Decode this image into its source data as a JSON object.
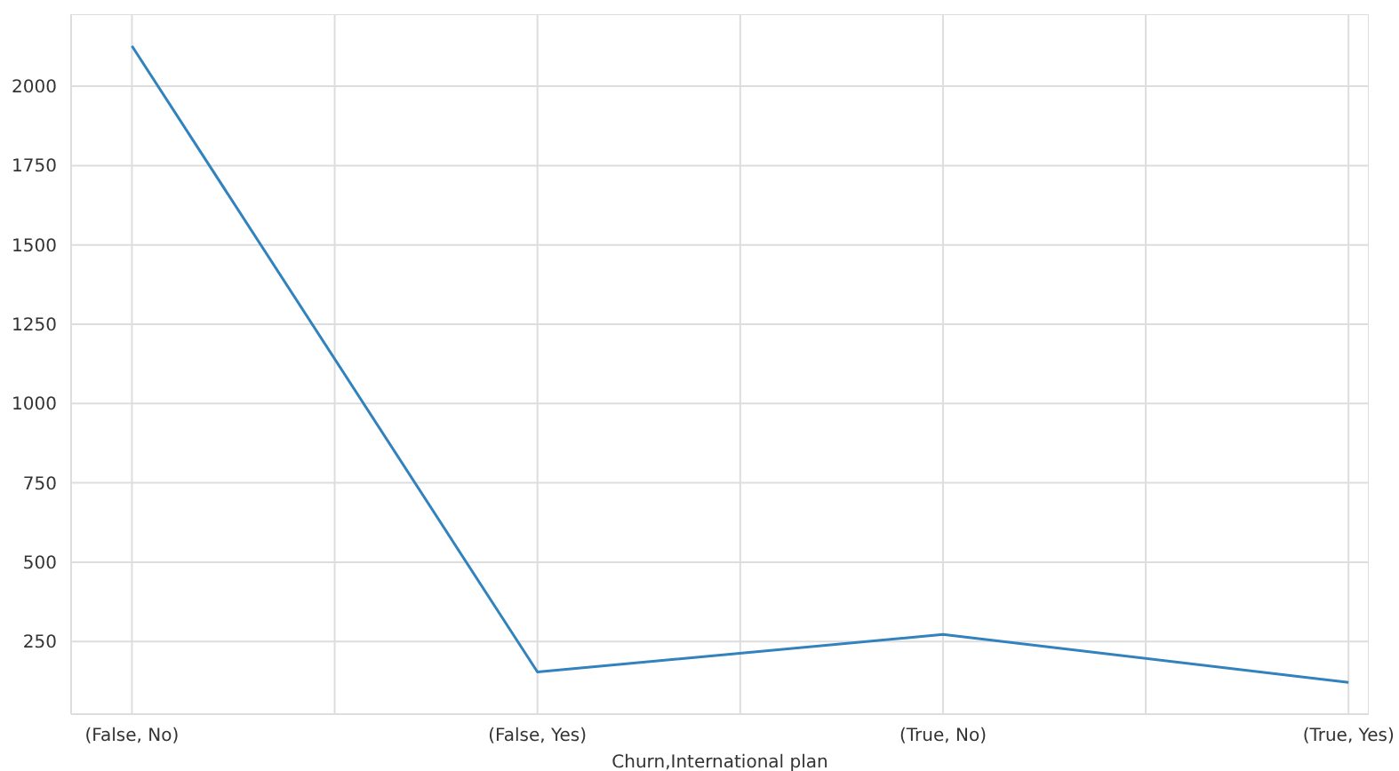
{
  "chart_data": {
    "type": "line",
    "xlabel": "Churn,International plan",
    "categories": [
      "(False, No)",
      "(False, Yes)",
      "(True, No)",
      "(True, Yes)"
    ],
    "series": [
      {
        "color": "#3182bd",
        "values": [
          2127,
          154,
          272,
          121
        ]
      }
    ],
    "ylim": [
      21,
      2227
    ],
    "yticks": [
      250,
      500,
      750,
      1000,
      1250,
      1500,
      1750,
      2000
    ],
    "grid": true,
    "marker": "none",
    "line_style": "solid"
  }
}
